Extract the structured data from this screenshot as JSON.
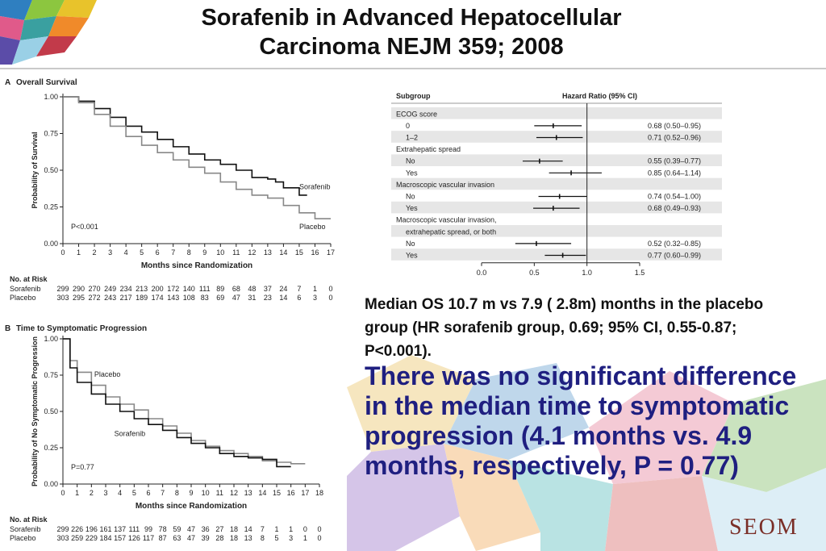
{
  "slide": {
    "title_line1": "Sorafenib in Advanced Hepatocellular",
    "title_line2": "Carcinoma NEJM 359; 2008",
    "median_text": "Median OS 10.7 m vs 7.9  ( 2.8m) months in the placebo group (HR sorafenib group, 0.69; 95% CI, 0.55-0.87; P<0.001).",
    "conclusion_text": "There was no significant difference in the median time to symptomatic progression (4.1 months vs. 4.9 months, respectively, P = 0.77)",
    "logo_text": "SEOM"
  },
  "colors": {
    "title": "#111111",
    "conclusion": "#1f1f80",
    "sorafenib_line": "#111111",
    "placebo_line": "#888888",
    "forest_band": "#e6e6e6",
    "logo": "#7a2e27"
  },
  "chart_data": [
    {
      "type": "line",
      "panel": "A",
      "title": "Overall Survival",
      "xlabel": "Months since Randomization",
      "ylabel": "Probability of Survival",
      "xlim": [
        0,
        17
      ],
      "ylim": [
        0,
        1
      ],
      "xticks": [
        "0",
        "1",
        "2",
        "3",
        "4",
        "5",
        "6",
        "7",
        "8",
        "9",
        "10",
        "11",
        "12",
        "13",
        "14",
        "15",
        "16",
        "17"
      ],
      "yticks": [
        "0.00",
        "0.25",
        "0.50",
        "0.75",
        "1.00"
      ],
      "annotation": "P<0.001",
      "series": [
        {
          "name": "Sorafenib",
          "x": [
            0,
            1,
            2,
            3,
            4,
            5,
            6,
            7,
            8,
            9,
            10,
            11,
            12,
            13,
            13.5,
            14,
            15,
            15.5
          ],
          "y": [
            1.0,
            0.97,
            0.92,
            0.86,
            0.8,
            0.76,
            0.71,
            0.66,
            0.61,
            0.57,
            0.54,
            0.5,
            0.45,
            0.44,
            0.42,
            0.38,
            0.33,
            0.33
          ]
        },
        {
          "name": "Placebo",
          "x": [
            0,
            1,
            2,
            3,
            4,
            5,
            6,
            7,
            8,
            9,
            10,
            11,
            12,
            13,
            14,
            15,
            16,
            17
          ],
          "y": [
            1.0,
            0.96,
            0.88,
            0.8,
            0.73,
            0.67,
            0.62,
            0.57,
            0.52,
            0.48,
            0.42,
            0.37,
            0.33,
            0.31,
            0.26,
            0.21,
            0.17,
            0.17
          ]
        }
      ],
      "risk_table": {
        "header": "No. at Risk",
        "rows": [
          {
            "label": "Sorafenib",
            "values": [
              "299",
              "290",
              "270",
              "249",
              "234",
              "213",
              "200",
              "172",
              "140",
              "111",
              "89",
              "68",
              "48",
              "37",
              "24",
              "7",
              "1",
              "0"
            ]
          },
          {
            "label": "Placebo",
            "values": [
              "303",
              "295",
              "272",
              "243",
              "217",
              "189",
              "174",
              "143",
              "108",
              "83",
              "69",
              "47",
              "31",
              "23",
              "14",
              "6",
              "3",
              "0"
            ]
          }
        ]
      }
    },
    {
      "type": "line",
      "panel": "B",
      "title": "Time to Symptomatic Progression",
      "xlabel": "Months since Randomization",
      "ylabel": "Probability of No Symptomatic Progression",
      "xlim": [
        0,
        18
      ],
      "ylim": [
        0,
        1
      ],
      "xticks": [
        "0",
        "1",
        "2",
        "3",
        "4",
        "5",
        "6",
        "7",
        "8",
        "9",
        "10",
        "11",
        "12",
        "13",
        "14",
        "15",
        "16",
        "17",
        "18"
      ],
      "yticks": [
        "0.00",
        "0.25",
        "0.50",
        "0.75",
        "1.00"
      ],
      "annotation": "P=0.77",
      "series": [
        {
          "name": "Placebo",
          "x": [
            0,
            0.5,
            1,
            2,
            3,
            4,
            5,
            6,
            7,
            8,
            9,
            10,
            11,
            12,
            13,
            14,
            15,
            16,
            17
          ],
          "y": [
            1.0,
            0.85,
            0.77,
            0.68,
            0.6,
            0.55,
            0.51,
            0.45,
            0.4,
            0.35,
            0.3,
            0.26,
            0.23,
            0.21,
            0.19,
            0.16,
            0.15,
            0.14,
            0.14
          ]
        },
        {
          "name": "Sorafenib",
          "x": [
            0,
            0.5,
            1,
            2,
            3,
            4,
            5,
            6,
            7,
            8,
            9,
            10,
            11,
            12,
            13,
            14,
            15,
            16
          ],
          "y": [
            1.0,
            0.8,
            0.7,
            0.62,
            0.55,
            0.5,
            0.45,
            0.41,
            0.37,
            0.32,
            0.28,
            0.25,
            0.21,
            0.19,
            0.18,
            0.17,
            0.12,
            0.12
          ]
        }
      ],
      "risk_table": {
        "header": "No. at Risk",
        "rows": [
          {
            "label": "Sorafenib",
            "values": [
              "299",
              "226",
              "196",
              "161",
              "137",
              "111",
              "99",
              "78",
              "59",
              "47",
              "36",
              "27",
              "18",
              "14",
              "7",
              "1",
              "1",
              "0",
              "0"
            ]
          },
          {
            "label": "Placebo",
            "values": [
              "303",
              "259",
              "229",
              "184",
              "157",
              "126",
              "117",
              "87",
              "63",
              "47",
              "39",
              "28",
              "18",
              "13",
              "8",
              "5",
              "3",
              "1",
              "0"
            ]
          }
        ]
      }
    },
    {
      "type": "forest",
      "header_left": "Subgroup",
      "header_right": "Hazard Ratio (95% CI)",
      "xlim": [
        0,
        1.5
      ],
      "xticks": [
        "0.0",
        "0.5",
        "1.0",
        "1.5"
      ],
      "rows": [
        {
          "label": "ECOG score",
          "heading": true
        },
        {
          "label": "0",
          "hr": 0.68,
          "lo": 0.5,
          "hi": 0.95,
          "text": "0.68 (0.50–0.95)"
        },
        {
          "label": "1–2",
          "hr": 0.71,
          "lo": 0.52,
          "hi": 0.96,
          "text": "0.71 (0.52–0.96)"
        },
        {
          "label": "Extrahepatic spread",
          "heading": true
        },
        {
          "label": "No",
          "hr": 0.55,
          "lo": 0.39,
          "hi": 0.77,
          "text": "0.55 (0.39–0.77)"
        },
        {
          "label": "Yes",
          "hr": 0.85,
          "lo": 0.64,
          "hi": 1.14,
          "text": "0.85 (0.64–1.14)"
        },
        {
          "label": "Macroscopic vascular invasion",
          "heading": true
        },
        {
          "label": "No",
          "hr": 0.74,
          "lo": 0.54,
          "hi": 1.0,
          "text": "0.74 (0.54–1.00)"
        },
        {
          "label": "Yes",
          "hr": 0.68,
          "lo": 0.49,
          "hi": 0.93,
          "text": "0.68 (0.49–0.93)"
        },
        {
          "label": "Macroscopic vascular invasion,",
          "heading": true
        },
        {
          "label": "extrahepatic spread, or both",
          "heading": true,
          "indent": true
        },
        {
          "label": "No",
          "hr": 0.52,
          "lo": 0.32,
          "hi": 0.85,
          "text": "0.52 (0.32–0.85)"
        },
        {
          "label": "Yes",
          "hr": 0.77,
          "lo": 0.6,
          "hi": 0.99,
          "text": "0.77 (0.60–0.99)"
        }
      ]
    }
  ]
}
